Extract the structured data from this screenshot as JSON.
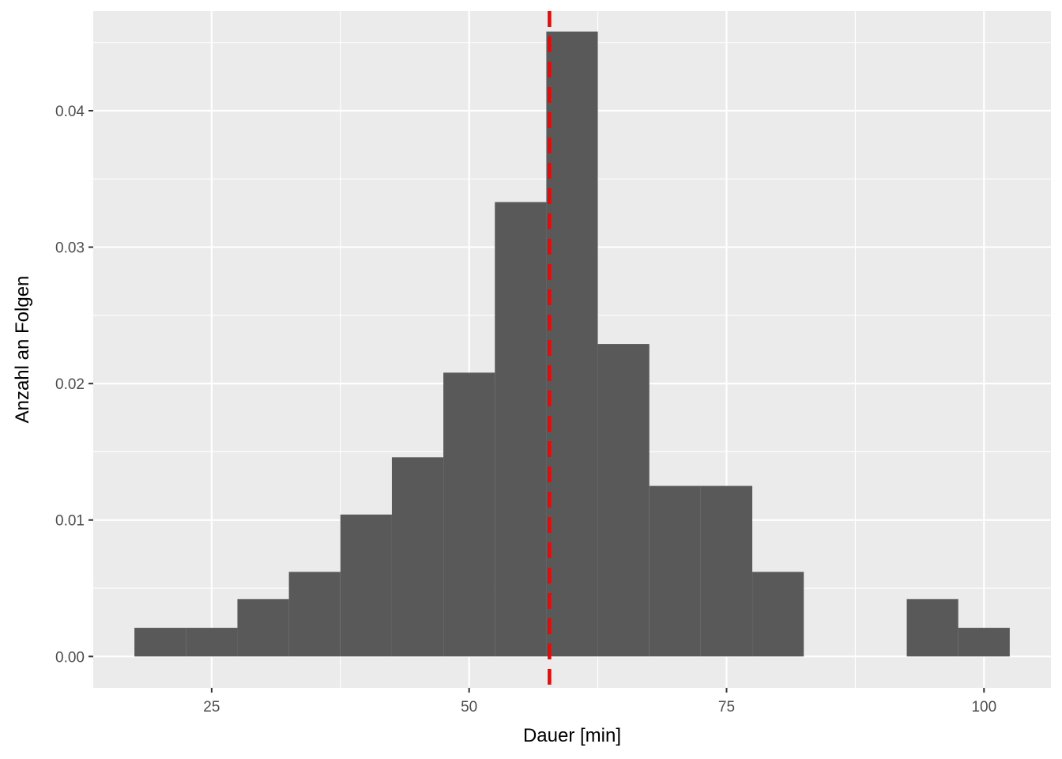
{
  "chart_data": {
    "type": "bar",
    "subtype": "histogram",
    "xlabel": "Dauer [min]",
    "ylabel": "Anzahl an Folgen",
    "xlim": [
      13.5,
      106.5
    ],
    "ylim": [
      -0.0023,
      0.0473
    ],
    "x_ticks": [
      25,
      50,
      75,
      100
    ],
    "x_tick_labels": [
      "25",
      "50",
      "75",
      "100"
    ],
    "y_ticks": [
      0.0,
      0.01,
      0.02,
      0.03,
      0.04
    ],
    "y_tick_labels": [
      "0.00",
      "0.01",
      "0.02",
      "0.03",
      "0.04"
    ],
    "bin_width": 5,
    "bins": [
      {
        "x0": 17.5,
        "x1": 22.5,
        "density": 0.0021
      },
      {
        "x0": 22.5,
        "x1": 27.5,
        "density": 0.0021
      },
      {
        "x0": 27.5,
        "x1": 32.5,
        "density": 0.0042
      },
      {
        "x0": 32.5,
        "x1": 37.5,
        "density": 0.0062
      },
      {
        "x0": 37.5,
        "x1": 42.5,
        "density": 0.0104
      },
      {
        "x0": 42.5,
        "x1": 47.5,
        "density": 0.0146
      },
      {
        "x0": 47.5,
        "x1": 52.5,
        "density": 0.0208
      },
      {
        "x0": 52.5,
        "x1": 57.5,
        "density": 0.0333
      },
      {
        "x0": 57.5,
        "x1": 62.5,
        "density": 0.0458
      },
      {
        "x0": 62.5,
        "x1": 67.5,
        "density": 0.0229
      },
      {
        "x0": 67.5,
        "x1": 72.5,
        "density": 0.0125
      },
      {
        "x0": 72.5,
        "x1": 77.5,
        "density": 0.0125
      },
      {
        "x0": 77.5,
        "x1": 82.5,
        "density": 0.0062
      },
      {
        "x0": 82.5,
        "x1": 87.5,
        "density": 0.0
      },
      {
        "x0": 87.5,
        "x1": 92.5,
        "density": 0.0
      },
      {
        "x0": 92.5,
        "x1": 97.5,
        "density": 0.0042
      },
      {
        "x0": 97.5,
        "x1": 102.5,
        "density": 0.0021
      }
    ],
    "reference_line": {
      "x": 57.8,
      "style": "dashed",
      "color": "#ff0000"
    },
    "bar_color": "#595959",
    "panel_color": "#ebebeb",
    "grid_color": "#ffffff",
    "grid": true,
    "legend": "none"
  }
}
